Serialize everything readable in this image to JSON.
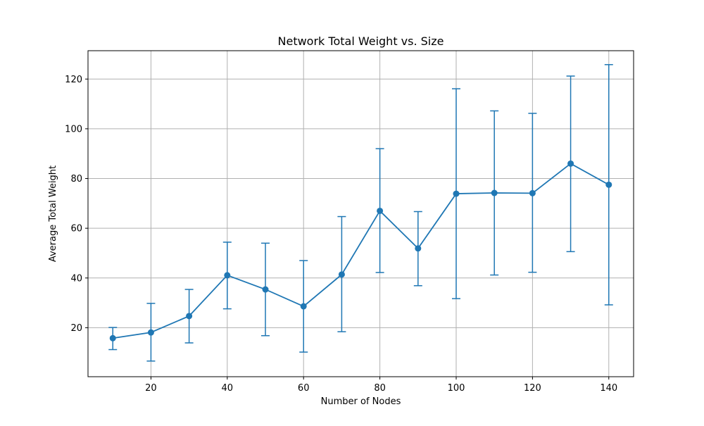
{
  "chart_data": {
    "type": "line",
    "title": "Network Total Weight vs. Size",
    "xlabel": "Number of Nodes",
    "ylabel": "Average Total Weight",
    "x": [
      10,
      20,
      30,
      40,
      50,
      60,
      70,
      80,
      90,
      100,
      110,
      120,
      130,
      140
    ],
    "series": [
      {
        "values": [
          15.8,
          18.1,
          24.7,
          41.1,
          35.4,
          28.6,
          41.4,
          67.0,
          51.9,
          73.9,
          74.2,
          74.1,
          86.0,
          77.5
        ],
        "err_lower": [
          11.2,
          6.6,
          13.9,
          27.6,
          16.8,
          10.2,
          18.4,
          42.2,
          36.9,
          31.7,
          41.2,
          42.3,
          50.6,
          29.2
        ],
        "err_upper": [
          20.1,
          29.8,
          35.4,
          54.4,
          54.0,
          47.0,
          64.7,
          92.0,
          66.7,
          116.1,
          107.2,
          106.2,
          121.2,
          125.8
        ],
        "color": "#1f77b4",
        "marker": "circle"
      }
    ],
    "xlim": [
      3.5,
      146.5
    ],
    "ylim": [
      0.3,
      131.4
    ],
    "xticks": [
      20,
      40,
      60,
      80,
      100,
      120,
      140
    ],
    "yticks": [
      20,
      40,
      60,
      80,
      100,
      120
    ],
    "grid": true,
    "legend": false
  }
}
